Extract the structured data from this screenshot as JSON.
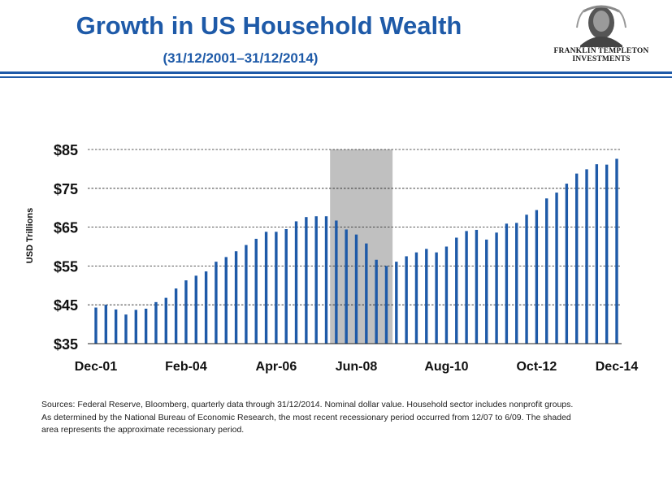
{
  "header": {
    "title": "Growth in US Household Wealth",
    "subtitle": "(31/12/2001–31/12/2014)",
    "logo_line1": "FRANKLIN TEMPLETON",
    "logo_line2": "INVESTMENTS"
  },
  "colors": {
    "brand": "#1e5aa8",
    "bar": "#1e5aa8",
    "recession": "#c0c0c0"
  },
  "chart_data": {
    "type": "bar",
    "ylabel": "USD Trillions",
    "ylim": [
      35,
      85
    ],
    "yticks": [
      "$85",
      "$75",
      "$65",
      "$55",
      "$45",
      "$35"
    ],
    "ytick_values": [
      85,
      75,
      65,
      55,
      45,
      35
    ],
    "xtick_labels": [
      "Dec-01",
      "Feb-04",
      "Apr-06",
      "Jun-08",
      "Aug-10",
      "Oct-12",
      "Dec-14"
    ],
    "xtick_indices": [
      0,
      9,
      18,
      26,
      35,
      44,
      52
    ],
    "grid": "horizontal dashed",
    "recession_shading": {
      "start_index": 24,
      "end_index": 30
    },
    "values": [
      44.3,
      45.0,
      43.8,
      42.5,
      43.7,
      44.0,
      45.7,
      46.8,
      49.2,
      51.3,
      52.5,
      53.6,
      56.1,
      57.3,
      58.8,
      60.4,
      62.0,
      63.8,
      63.8,
      64.5,
      66.5,
      67.6,
      67.8,
      67.8,
      66.7,
      64.4,
      63.1,
      60.8,
      56.6,
      55.0,
      56.1,
      57.5,
      58.5,
      59.4,
      58.5,
      60.0,
      62.3,
      64.0,
      64.3,
      61.8,
      63.6,
      65.9,
      66.1,
      68.2,
      69.4,
      72.4,
      73.9,
      76.2,
      78.8,
      79.9,
      81.2,
      81.1,
      82.6
    ]
  },
  "footnote": {
    "line1": "Sources: Federal Reserve, Bloomberg, quarterly data through 31/12/2014. Nominal dollar value. Household sector includes nonprofit groups.",
    "line2": "As determined by the National Bureau of Economic Research, the most recent recessionary period occurred from 12/07 to 6/09. The shaded",
    "line3": "area represents the approximate recessionary period."
  }
}
